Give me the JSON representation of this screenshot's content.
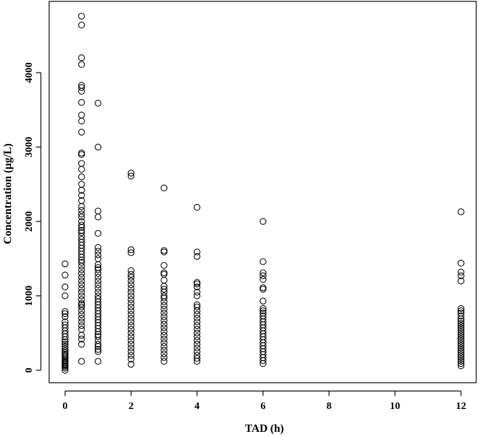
{
  "chart_data": {
    "type": "scatter",
    "title": "",
    "xlabel": "TAD (h)",
    "ylabel": "Concentration (µg/L)",
    "xlim": [
      -0.5,
      12.5
    ],
    "ylim": [
      -50,
      4800
    ],
    "x_ticks": [
      0,
      2,
      4,
      6,
      8,
      10,
      12
    ],
    "y_ticks": [
      0,
      1000,
      2000,
      3000,
      4000
    ],
    "grid": false,
    "marker": "open-circle",
    "series": [
      {
        "x": 0,
        "values": [
          0,
          30,
          50,
          65,
          80,
          95,
          110,
          125,
          140,
          160,
          180,
          200,
          220,
          240,
          260,
          290,
          320,
          350,
          380,
          410,
          450,
          490,
          530,
          570,
          610,
          650,
          720,
          760,
          790,
          1000,
          1120,
          1280,
          1430
        ]
      },
      {
        "x": 0.5,
        "values": [
          120,
          350,
          420,
          470,
          550,
          600,
          650,
          700,
          750,
          800,
          850,
          880,
          900,
          950,
          1000,
          1050,
          1100,
          1150,
          1200,
          1250,
          1300,
          1350,
          1400,
          1450,
          1480,
          1520,
          1560,
          1600,
          1640,
          1680,
          1720,
          1760,
          1800,
          1850,
          1880,
          1920,
          1950,
          2000,
          2060,
          2100,
          2150,
          2200,
          2280,
          2350,
          2420,
          2500,
          2600,
          2700,
          2780,
          2900,
          2920,
          3200,
          3350,
          3430,
          3600,
          3750,
          3800,
          3830,
          4110,
          4200,
          4640,
          4760
        ]
      },
      {
        "x": 1,
        "values": [
          120,
          250,
          280,
          320,
          350,
          400,
          450,
          480,
          520,
          560,
          600,
          640,
          680,
          720,
          760,
          800,
          840,
          880,
          920,
          960,
          1000,
          1050,
          1100,
          1150,
          1200,
          1250,
          1300,
          1350,
          1380,
          1420,
          1500,
          1550,
          1600,
          1650,
          1840,
          2060,
          2140,
          3000,
          3590
        ]
      },
      {
        "x": 2,
        "values": [
          80,
          150,
          200,
          250,
          300,
          350,
          400,
          450,
          500,
          550,
          600,
          650,
          700,
          750,
          800,
          850,
          900,
          950,
          1000,
          1050,
          1100,
          1150,
          1200,
          1250,
          1290,
          1340,
          1580,
          1620,
          2610,
          2650
        ]
      },
      {
        "x": 3,
        "values": [
          120,
          170,
          220,
          270,
          320,
          370,
          420,
          470,
          520,
          570,
          620,
          670,
          720,
          770,
          820,
          870,
          920,
          970,
          1000,
          1050,
          1090,
          1130,
          1210,
          1290,
          1310,
          1410,
          1590,
          1610,
          2450
        ]
      },
      {
        "x": 4,
        "values": [
          120,
          160,
          200,
          250,
          300,
          350,
          400,
          450,
          500,
          550,
          600,
          650,
          700,
          750,
          800,
          850,
          880,
          1000,
          1050,
          1120,
          1160,
          1180,
          1530,
          1590,
          2190
        ]
      },
      {
        "x": 6,
        "values": [
          90,
          130,
          170,
          210,
          250,
          290,
          330,
          370,
          410,
          450,
          490,
          530,
          570,
          610,
          650,
          690,
          730,
          770,
          800,
          830,
          930,
          1090,
          1110,
          1220,
          1270,
          1310,
          1460,
          2000
        ]
      },
      {
        "x": 12,
        "values": [
          60,
          90,
          120,
          150,
          180,
          210,
          240,
          270,
          300,
          330,
          360,
          390,
          420,
          450,
          480,
          510,
          540,
          570,
          600,
          630,
          660,
          690,
          730,
          770,
          800,
          830,
          1200,
          1270,
          1320,
          1440,
          2130
        ]
      }
    ]
  }
}
